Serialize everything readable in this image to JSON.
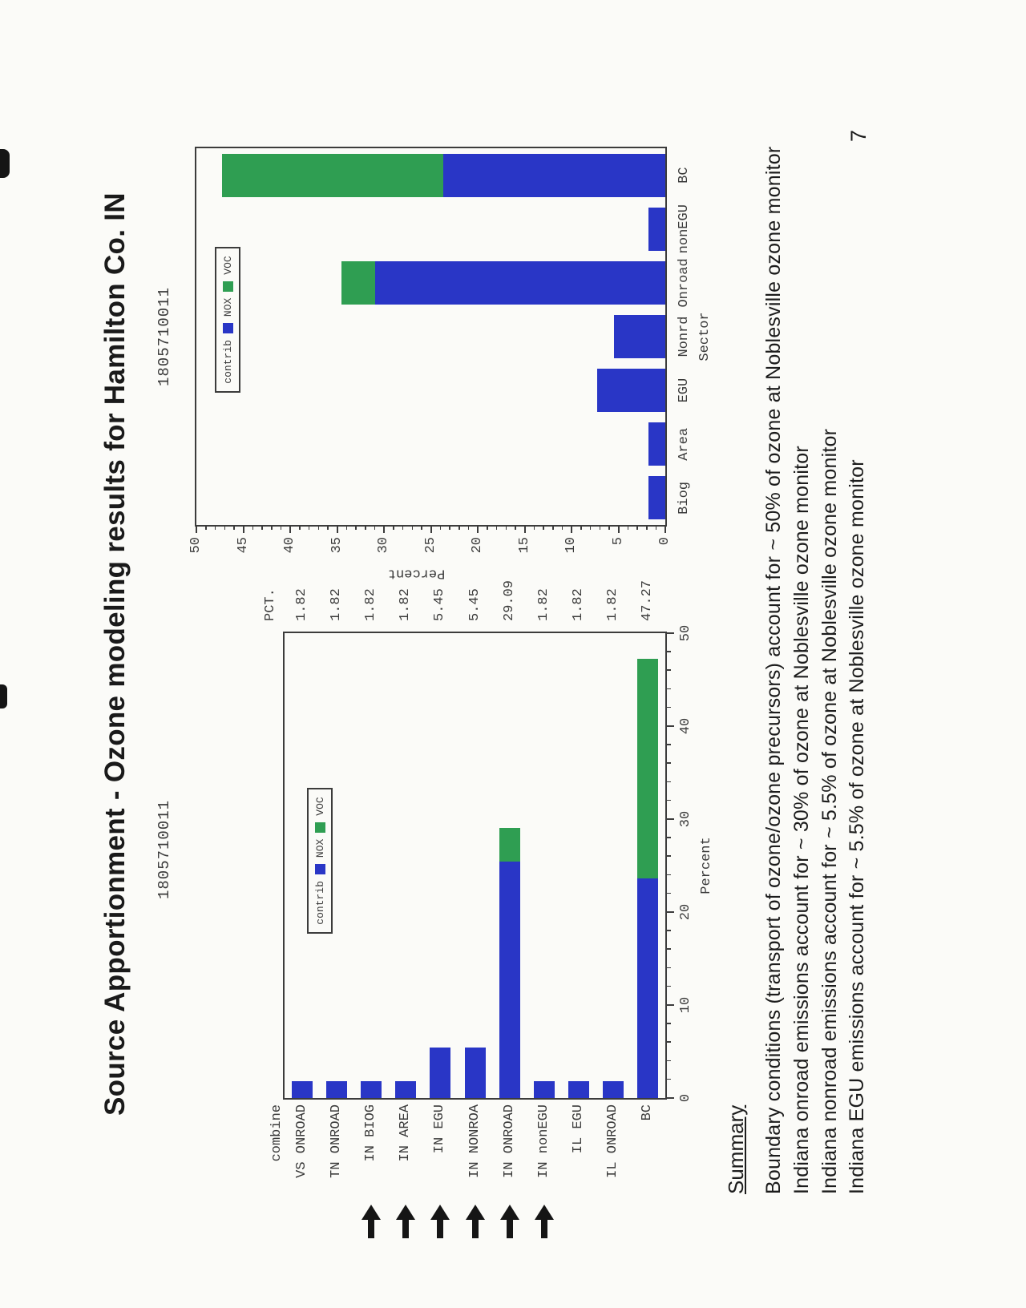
{
  "slide": {
    "title": "Source Apportionment - Ozone modeling results for Hamilton Co. IN",
    "page_number": "7"
  },
  "legend": {
    "title": "contrib",
    "series": [
      "NOX",
      "VOC"
    ]
  },
  "colors": {
    "nox": "#2936c6",
    "voc": "#2f9e52",
    "arrow": "#151515"
  },
  "chart_data": [
    {
      "type": "bar",
      "orientation": "horizontal",
      "title": "1805710011",
      "category_axis_label": "combine",
      "value_axis_label": "Percent",
      "pct_header": "PCT.",
      "xlim": [
        0,
        50
      ],
      "ticks": [
        0,
        10,
        20,
        30,
        40,
        50
      ],
      "grid": false,
      "legend_position": "top-center-inside",
      "categories": [
        "VS ONROAD",
        "TN ONROAD",
        "IN BIOG",
        "IN AREA",
        "IN EGU",
        "IN NONROA",
        "IN ONROAD",
        "IN nonEGU",
        "IL EGU",
        "IL ONROAD",
        "BC"
      ],
      "series": [
        {
          "name": "NOX",
          "values": [
            1.82,
            1.82,
            1.82,
            1.82,
            5.45,
            5.45,
            25.45,
            1.82,
            1.82,
            1.82,
            23.64
          ]
        },
        {
          "name": "VOC",
          "values": [
            0,
            0,
            0,
            0,
            0,
            0,
            3.64,
            0,
            0,
            0,
            23.63
          ]
        }
      ],
      "pct_values": [
        "1.82",
        "1.82",
        "1.82",
        "1.82",
        "5.45",
        "5.45",
        "29.09",
        "1.82",
        "1.82",
        "1.82",
        "47.27"
      ],
      "arrow_rows": [
        2,
        3,
        4,
        5,
        6,
        7
      ],
      "arrow_icon": "bold-right-arrow"
    },
    {
      "type": "bar",
      "orientation": "vertical",
      "title": "1805710011",
      "category_axis_label": "Sector",
      "value_axis_label": "Percent",
      "ylim": [
        0,
        50
      ],
      "ticks": [
        0,
        5,
        10,
        15,
        20,
        25,
        30,
        35,
        40,
        45,
        50
      ],
      "grid": false,
      "legend_position": "top-center-inside",
      "categories": [
        "Biog",
        "Area",
        "EGU",
        "Nonrd",
        "Onroad",
        "nonEGU",
        "BC"
      ],
      "series": [
        {
          "name": "NOX",
          "values": [
            1.82,
            1.82,
            7.27,
            5.45,
            30.91,
            1.82,
            23.64
          ]
        },
        {
          "name": "VOC",
          "values": [
            0,
            0,
            0,
            0,
            3.64,
            0,
            23.63
          ]
        }
      ]
    }
  ],
  "summary": {
    "heading": "Summary",
    "lines": [
      "Boundary conditions (transport of ozone/ozone precursors) account for ~ 50% of ozone at Noblesville ozone monitor",
      "Indiana onroad emissions account for ~ 30% of ozone at Noblesville ozone monitor",
      "Indiana nonroad emissions account for ~ 5.5% of ozone at Noblesville ozone monitor",
      "Indiana EGU emissions account for ~ 5.5% of ozone at Noblesville ozone monitor"
    ]
  }
}
